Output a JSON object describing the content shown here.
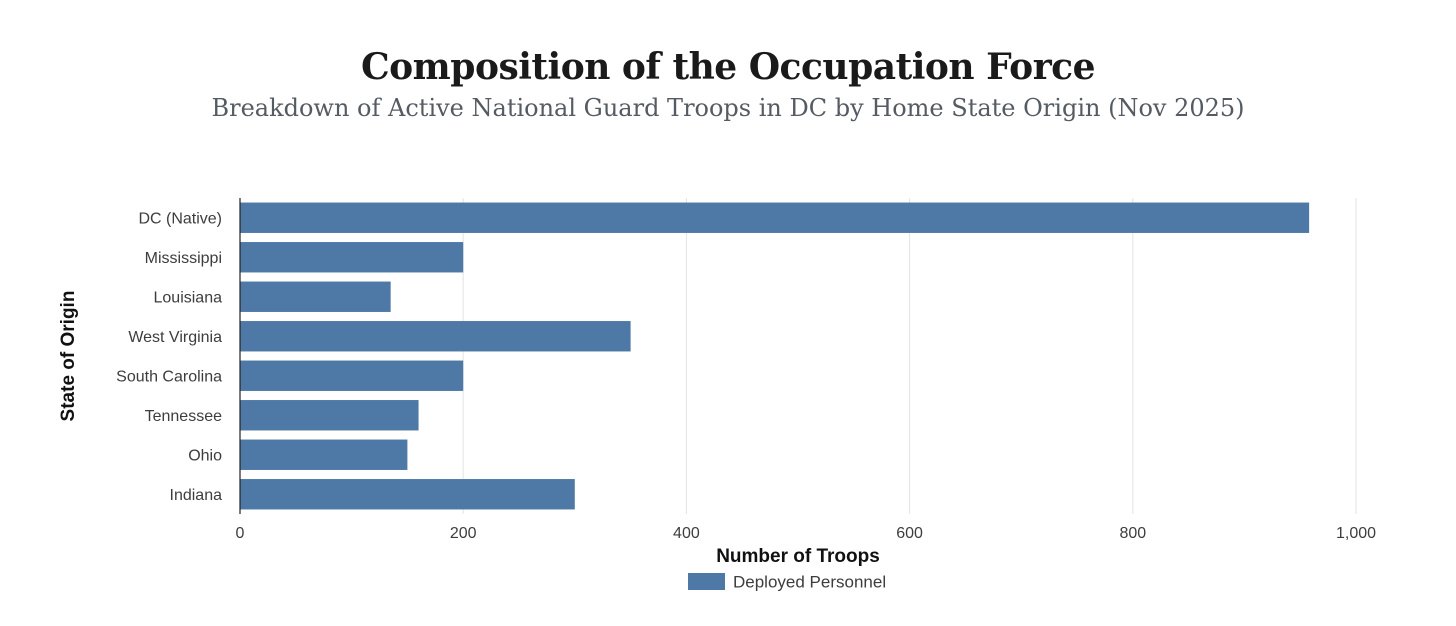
{
  "chart_data": {
    "type": "bar",
    "orientation": "horizontal",
    "title": "Composition of the Occupation Force",
    "subtitle": "Breakdown of Active National Guard Troops in DC by Home State Origin (Nov 2025)",
    "xlabel": "Number of Troops",
    "ylabel": "State of Origin",
    "categories": [
      "DC (Native)",
      "Mississippi",
      "Louisiana",
      "West Virginia",
      "South Carolina",
      "Tennessee",
      "Ohio",
      "Indiana"
    ],
    "series": [
      {
        "name": "Deployed Personnel",
        "values": [
          958,
          200,
          135,
          350,
          200,
          160,
          150,
          300
        ],
        "color": "#4e79a7"
      }
    ],
    "xlim": [
      0,
      1000
    ],
    "xticks": [
      0,
      200,
      400,
      600,
      800,
      1000
    ],
    "xtick_labels": [
      "0",
      "200",
      "400",
      "600",
      "800",
      "1,000"
    ],
    "grid": "vertical",
    "legend": "bottom-center"
  }
}
